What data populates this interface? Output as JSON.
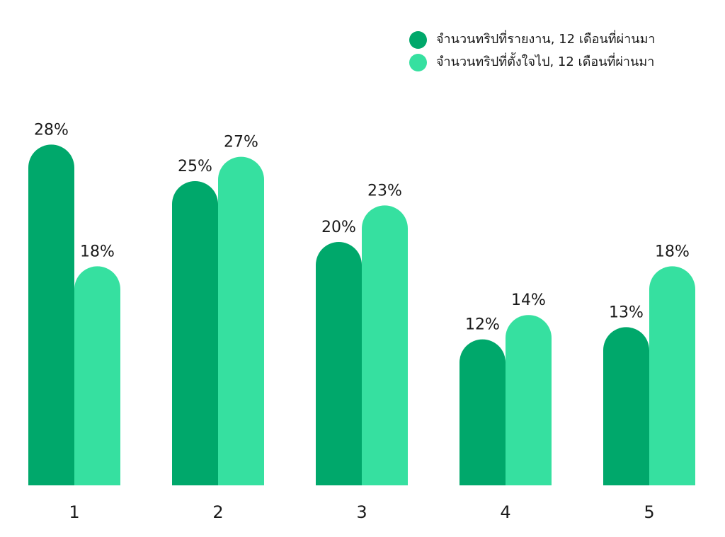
{
  "colors": {
    "series_1": "#00a86b",
    "series_2": "#36e0a0",
    "text": "#1a1a1a",
    "background": "#ffffff"
  },
  "legend": {
    "items": [
      {
        "label": "จำนวนทริปที่รายงาน, 12 เดือนที่ผ่านมา",
        "color": "#00a86b"
      },
      {
        "label": "จำนวนทริปที่ตั้งใจไป, 12 เดือนที่ผ่านมา",
        "color": "#36e0a0"
      }
    ]
  },
  "chart_data": {
    "type": "bar",
    "categories": [
      "1",
      "2",
      "3",
      "4",
      "5"
    ],
    "series": [
      {
        "name": "จำนวนทริปที่รายงาน, 12 เดือนที่ผ่านมา",
        "values": [
          28,
          25,
          20,
          12,
          13
        ],
        "value_labels": [
          "28%",
          "25%",
          "20%",
          "12%",
          "13%"
        ],
        "color": "#00a86b"
      },
      {
        "name": "จำนวนทริปที่ตั้งใจไป, 12 เดือนที่ผ่านมา",
        "values": [
          18,
          27,
          23,
          14,
          18
        ],
        "value_labels": [
          "18%",
          "27%",
          "23%",
          "14%",
          "18%"
        ],
        "color": "#36e0a0"
      }
    ],
    "ylim": [
      0,
      30
    ],
    "grid": false,
    "legend_position": "top-right",
    "bar_style": "rounded-top"
  }
}
